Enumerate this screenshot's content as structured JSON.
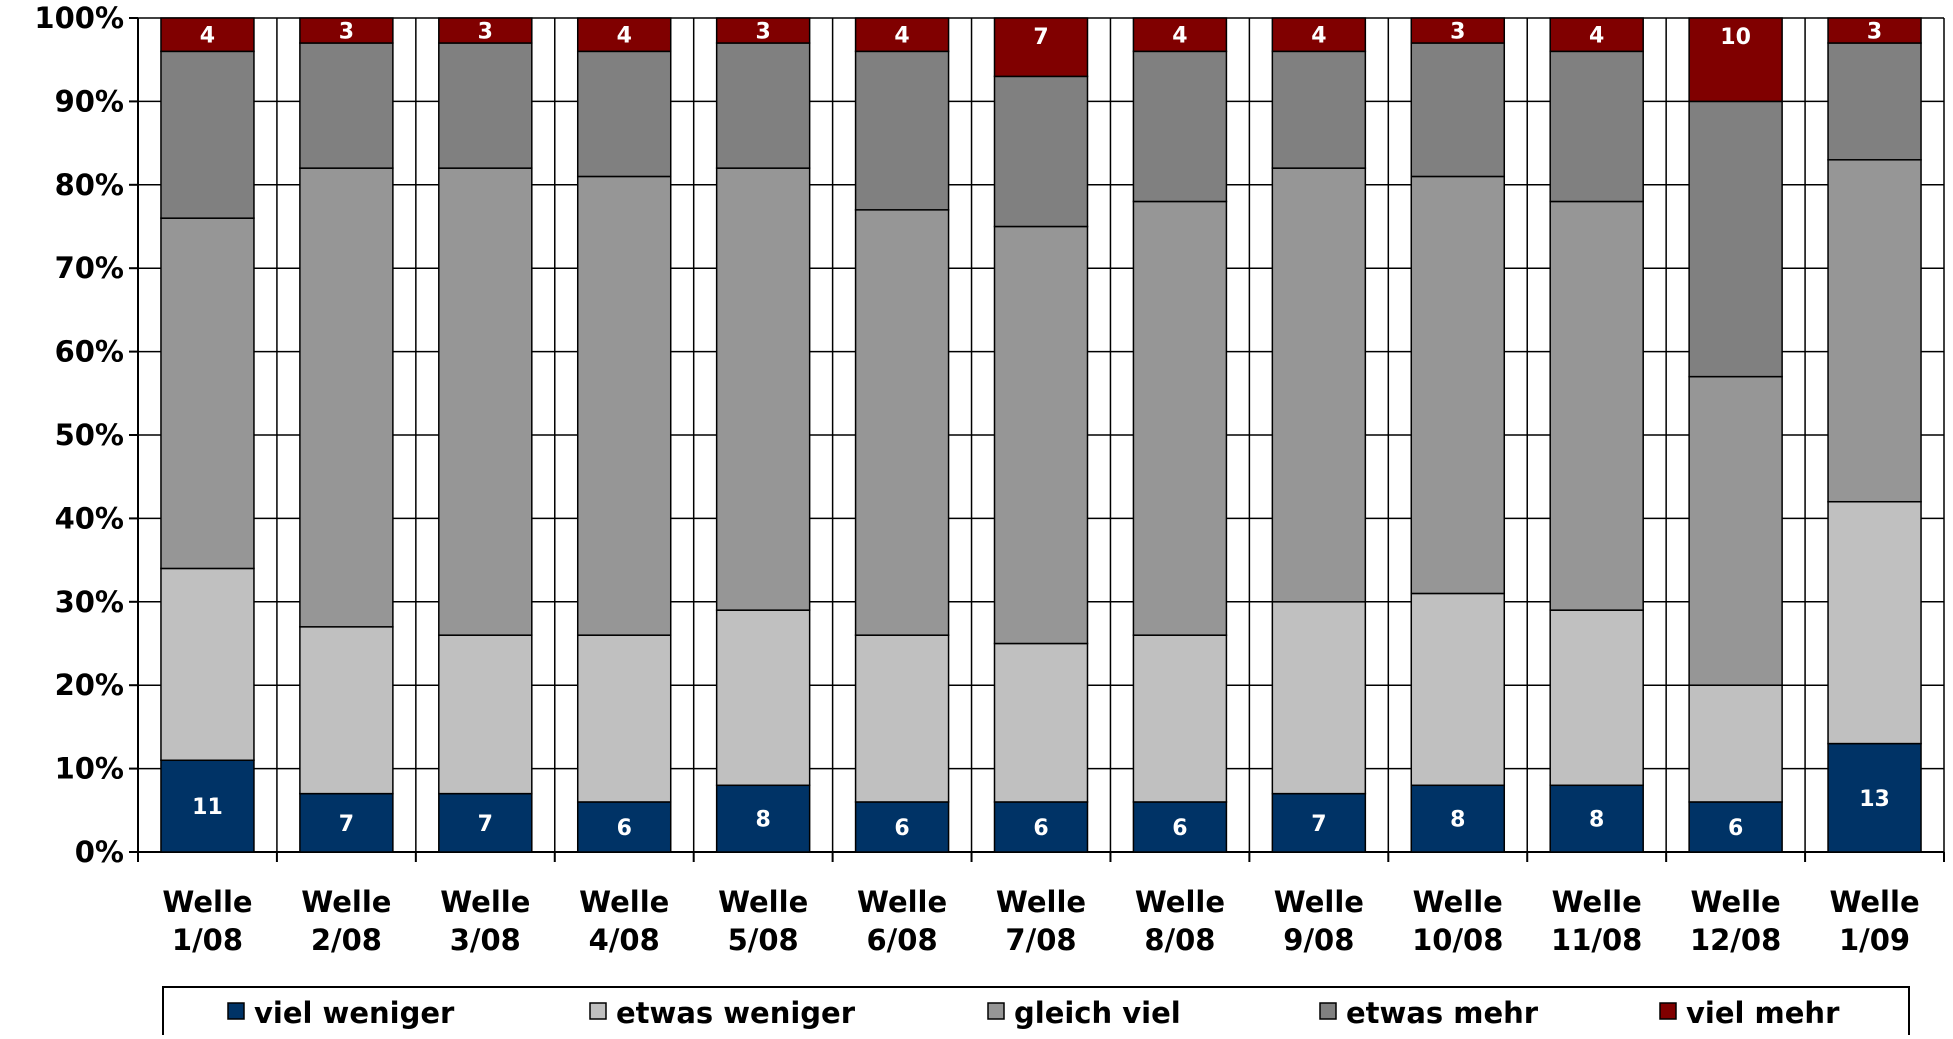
{
  "chart_data": {
    "type": "bar",
    "stacked": true,
    "percent": true,
    "categories": [
      [
        "Welle",
        "1/08"
      ],
      [
        "Welle",
        "2/08"
      ],
      [
        "Welle",
        "3/08"
      ],
      [
        "Welle",
        "4/08"
      ],
      [
        "Welle",
        "5/08"
      ],
      [
        "Welle",
        "6/08"
      ],
      [
        "Welle",
        "7/08"
      ],
      [
        "Welle",
        "8/08"
      ],
      [
        "Welle",
        "9/08"
      ],
      [
        "Welle",
        "10/08"
      ],
      [
        "Welle",
        "11/08"
      ],
      [
        "Welle",
        "12/08"
      ],
      [
        "Welle",
        "1/09"
      ]
    ],
    "series": [
      {
        "name": "viel weniger",
        "color": "#003366",
        "label_values": true,
        "values": [
          11,
          7,
          7,
          6,
          8,
          6,
          6,
          6,
          7,
          8,
          8,
          6,
          13
        ]
      },
      {
        "name": "etwas weniger",
        "color": "#c0c0c0",
        "label_values": false,
        "values": [
          23,
          20,
          19,
          20,
          21,
          20,
          19,
          20,
          23,
          23,
          21,
          14,
          29
        ]
      },
      {
        "name": "gleich viel",
        "color": "#969696",
        "label_values": false,
        "values": [
          42,
          55,
          56,
          55,
          53,
          51,
          50,
          52,
          52,
          50,
          49,
          37,
          41
        ]
      },
      {
        "name": "etwas mehr",
        "color": "#808080",
        "label_values": false,
        "values": [
          20,
          15,
          15,
          15,
          15,
          19,
          18,
          18,
          14,
          16,
          18,
          33,
          14
        ]
      },
      {
        "name": "viel mehr",
        "color": "#800000",
        "label_values": true,
        "values": [
          4,
          3,
          3,
          4,
          3,
          4,
          7,
          4,
          4,
          3,
          4,
          10,
          3
        ]
      }
    ],
    "ylim": [
      0,
      100
    ],
    "yticks": [
      "0%",
      "10%",
      "20%",
      "30%",
      "40%",
      "50%",
      "60%",
      "70%",
      "80%",
      "90%",
      "100%"
    ],
    "grid": true,
    "legend_position": "bottom",
    "xlabel": "",
    "ylabel": "",
    "title": ""
  }
}
